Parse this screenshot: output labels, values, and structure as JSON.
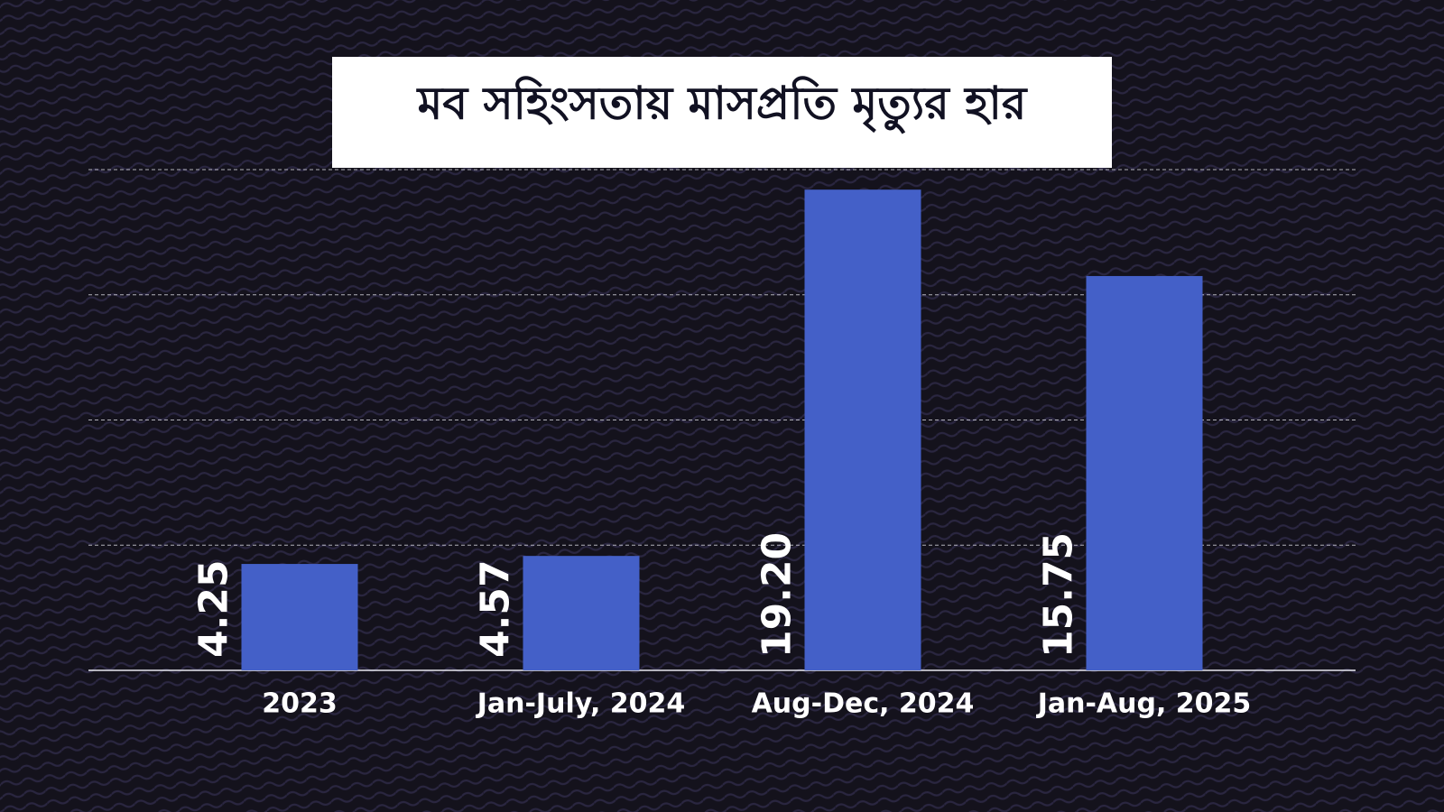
{
  "chart_data": {
    "type": "bar",
    "title": "মব সহিংসতায় মাসপ্রতি মৃত্যুর হার",
    "categories": [
      "2023",
      "Jan-July, 2024",
      "Aug-Dec, 2024",
      "Jan-Aug, 2025"
    ],
    "values": [
      4.25,
      4.57,
      19.2,
      15.75
    ],
    "value_labels": [
      "4.25",
      "4.57",
      "19.20",
      "15.75"
    ],
    "color": "#4460c8",
    "ylim": [
      0,
      20
    ],
    "yticks": [
      0,
      5,
      10,
      15,
      20
    ],
    "grid": true
  }
}
